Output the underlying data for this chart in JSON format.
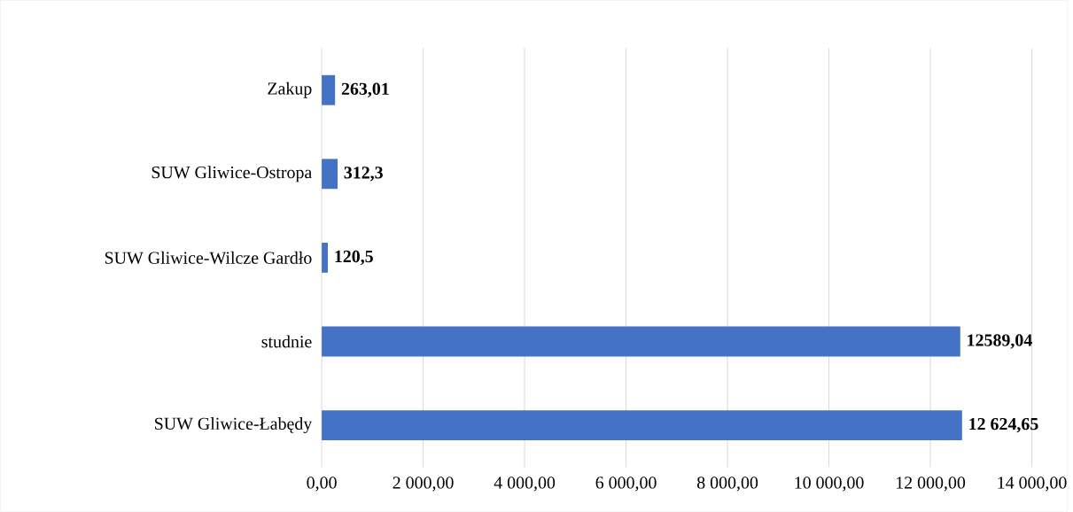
{
  "chart_data": {
    "type": "bar",
    "orientation": "horizontal",
    "categories": [
      "Zakup",
      "SUW Gliwice-Ostropa",
      "SUW Gliwice-Wilcze Gardło",
      "studnie",
      "SUW Gliwice-Łabędy"
    ],
    "values": [
      263.01,
      312.3,
      120.5,
      12589.04,
      12624.65
    ],
    "value_labels": [
      "263,01",
      "312,3",
      "120,5",
      "12589,04",
      "12 624,65"
    ],
    "color": "#4472c4",
    "xlim": [
      0,
      14000
    ],
    "xticks": [
      {
        "value": 0,
        "label": "0,00"
      },
      {
        "value": 2000,
        "label": "2 000,00"
      },
      {
        "value": 4000,
        "label": "4 000,00"
      },
      {
        "value": 6000,
        "label": "6 000,00"
      },
      {
        "value": 8000,
        "label": "8 000,00"
      },
      {
        "value": 10000,
        "label": "10 000,00"
      },
      {
        "value": 12000,
        "label": "12 000,00"
      },
      {
        "value": 14000,
        "label": "14 000,00"
      }
    ],
    "grid": "x"
  }
}
